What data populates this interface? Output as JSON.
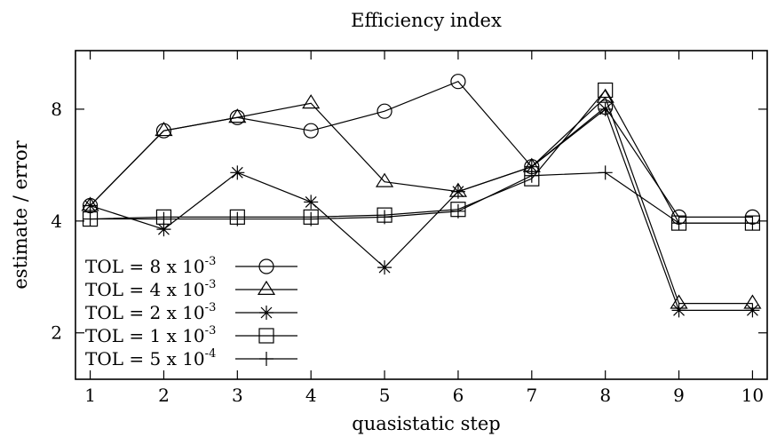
{
  "chart_data": {
    "type": "line",
    "title": "Efficiency index",
    "xlabel": "quasistatic step",
    "ylabel": "estimate / error",
    "x": [
      1,
      2,
      3,
      4,
      5,
      6,
      7,
      8,
      9,
      10
    ],
    "xlim": [
      0.8,
      10.2
    ],
    "ylim": [
      1.5,
      11.5
    ],
    "yscale": "log2",
    "xticks": [
      "1",
      "2",
      "3",
      "4",
      "5",
      "6",
      "7",
      "8",
      "9",
      "10"
    ],
    "yticks": [
      {
        "value": 2,
        "label": "2"
      },
      {
        "value": 4,
        "label": "4"
      },
      {
        "value": 8,
        "label": "8"
      }
    ],
    "grid": false,
    "legend_position": "bottom-left",
    "series": [
      {
        "name_main": "TOL = 8 x 10",
        "name_exp": "-3",
        "marker": "circle",
        "values": [
          4.4,
          7.0,
          7.6,
          7.0,
          7.9,
          9.5,
          5.6,
          8.1,
          4.1,
          4.1
        ]
      },
      {
        "name_main": "TOL = 4 x 10",
        "name_exp": "-3",
        "marker": "triangle",
        "values": [
          4.4,
          7.0,
          7.6,
          8.3,
          5.1,
          4.8,
          5.6,
          8.6,
          2.4,
          2.4
        ]
      },
      {
        "name_main": "TOL = 2 x 10",
        "name_exp": "-3",
        "marker": "star",
        "values": [
          4.4,
          3.8,
          5.4,
          4.5,
          3.0,
          4.8,
          5.6,
          8.0,
          2.3,
          2.3
        ]
      },
      {
        "name_main": "TOL = 1 x 10",
        "name_exp": "-3",
        "marker": "square",
        "values": [
          4.05,
          4.1,
          4.1,
          4.1,
          4.15,
          4.3,
          5.2,
          9.0,
          3.95,
          3.95
        ]
      },
      {
        "name_main": "TOL = 5 x 10",
        "name_exp": "-4",
        "marker": "plus",
        "values": [
          4.05,
          4.05,
          4.05,
          4.05,
          4.1,
          4.25,
          5.3,
          5.4,
          3.95,
          3.95
        ]
      }
    ]
  }
}
